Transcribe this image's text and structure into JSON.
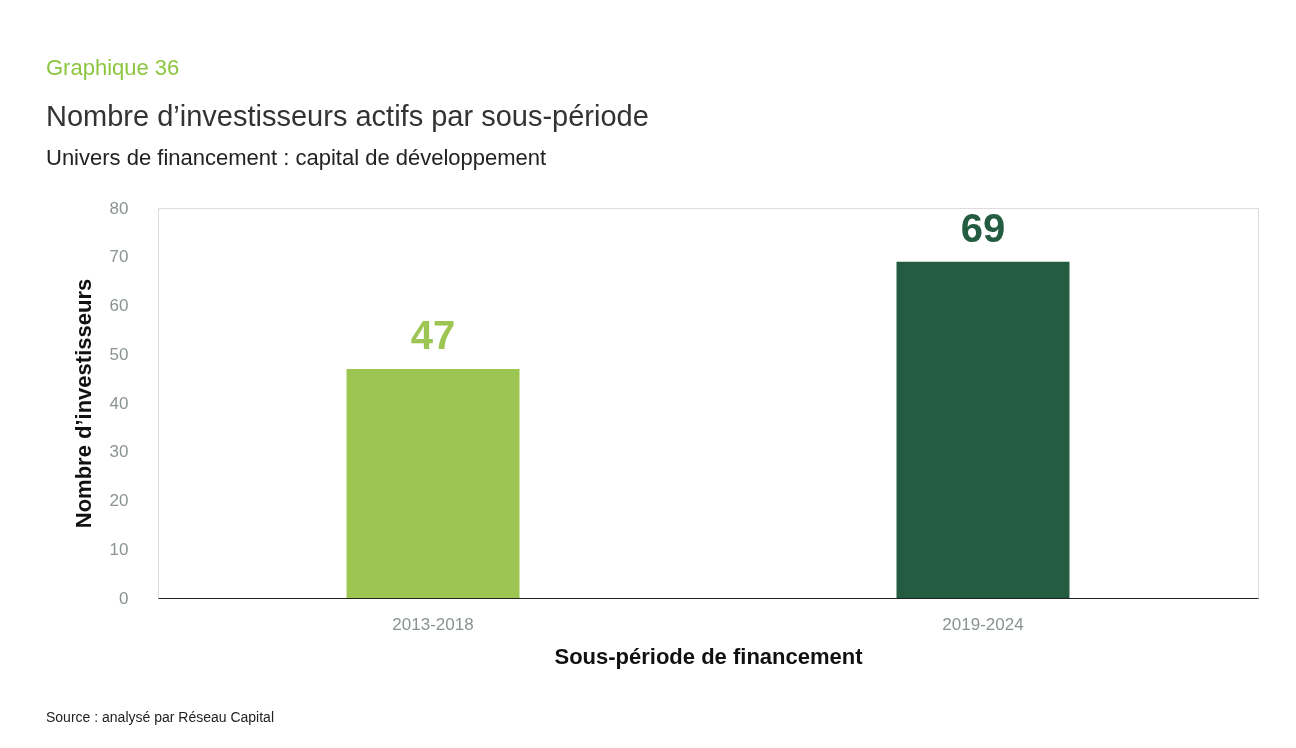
{
  "chart_data": {
    "type": "bar",
    "title": "Nombre d’investisseurs actifs par sous-période",
    "subtitle": "Univers de financement : capital de développement",
    "xlabel": "Sous-période de financement",
    "ylabel": "Nombre d’investisseurs",
    "categories": [
      "2013-2018",
      "2019-2024"
    ],
    "values": [
      47,
      69
    ],
    "colors": [
      "#9dc551",
      "#245c42"
    ],
    "ylim": [
      0,
      80
    ],
    "yticks": [
      0,
      10,
      20,
      30,
      40,
      50,
      60,
      70,
      80
    ],
    "grid": false,
    "data_labels": true,
    "annotations": [
      "Graphique 36",
      "Source : analysé par Réseau Capital"
    ]
  }
}
